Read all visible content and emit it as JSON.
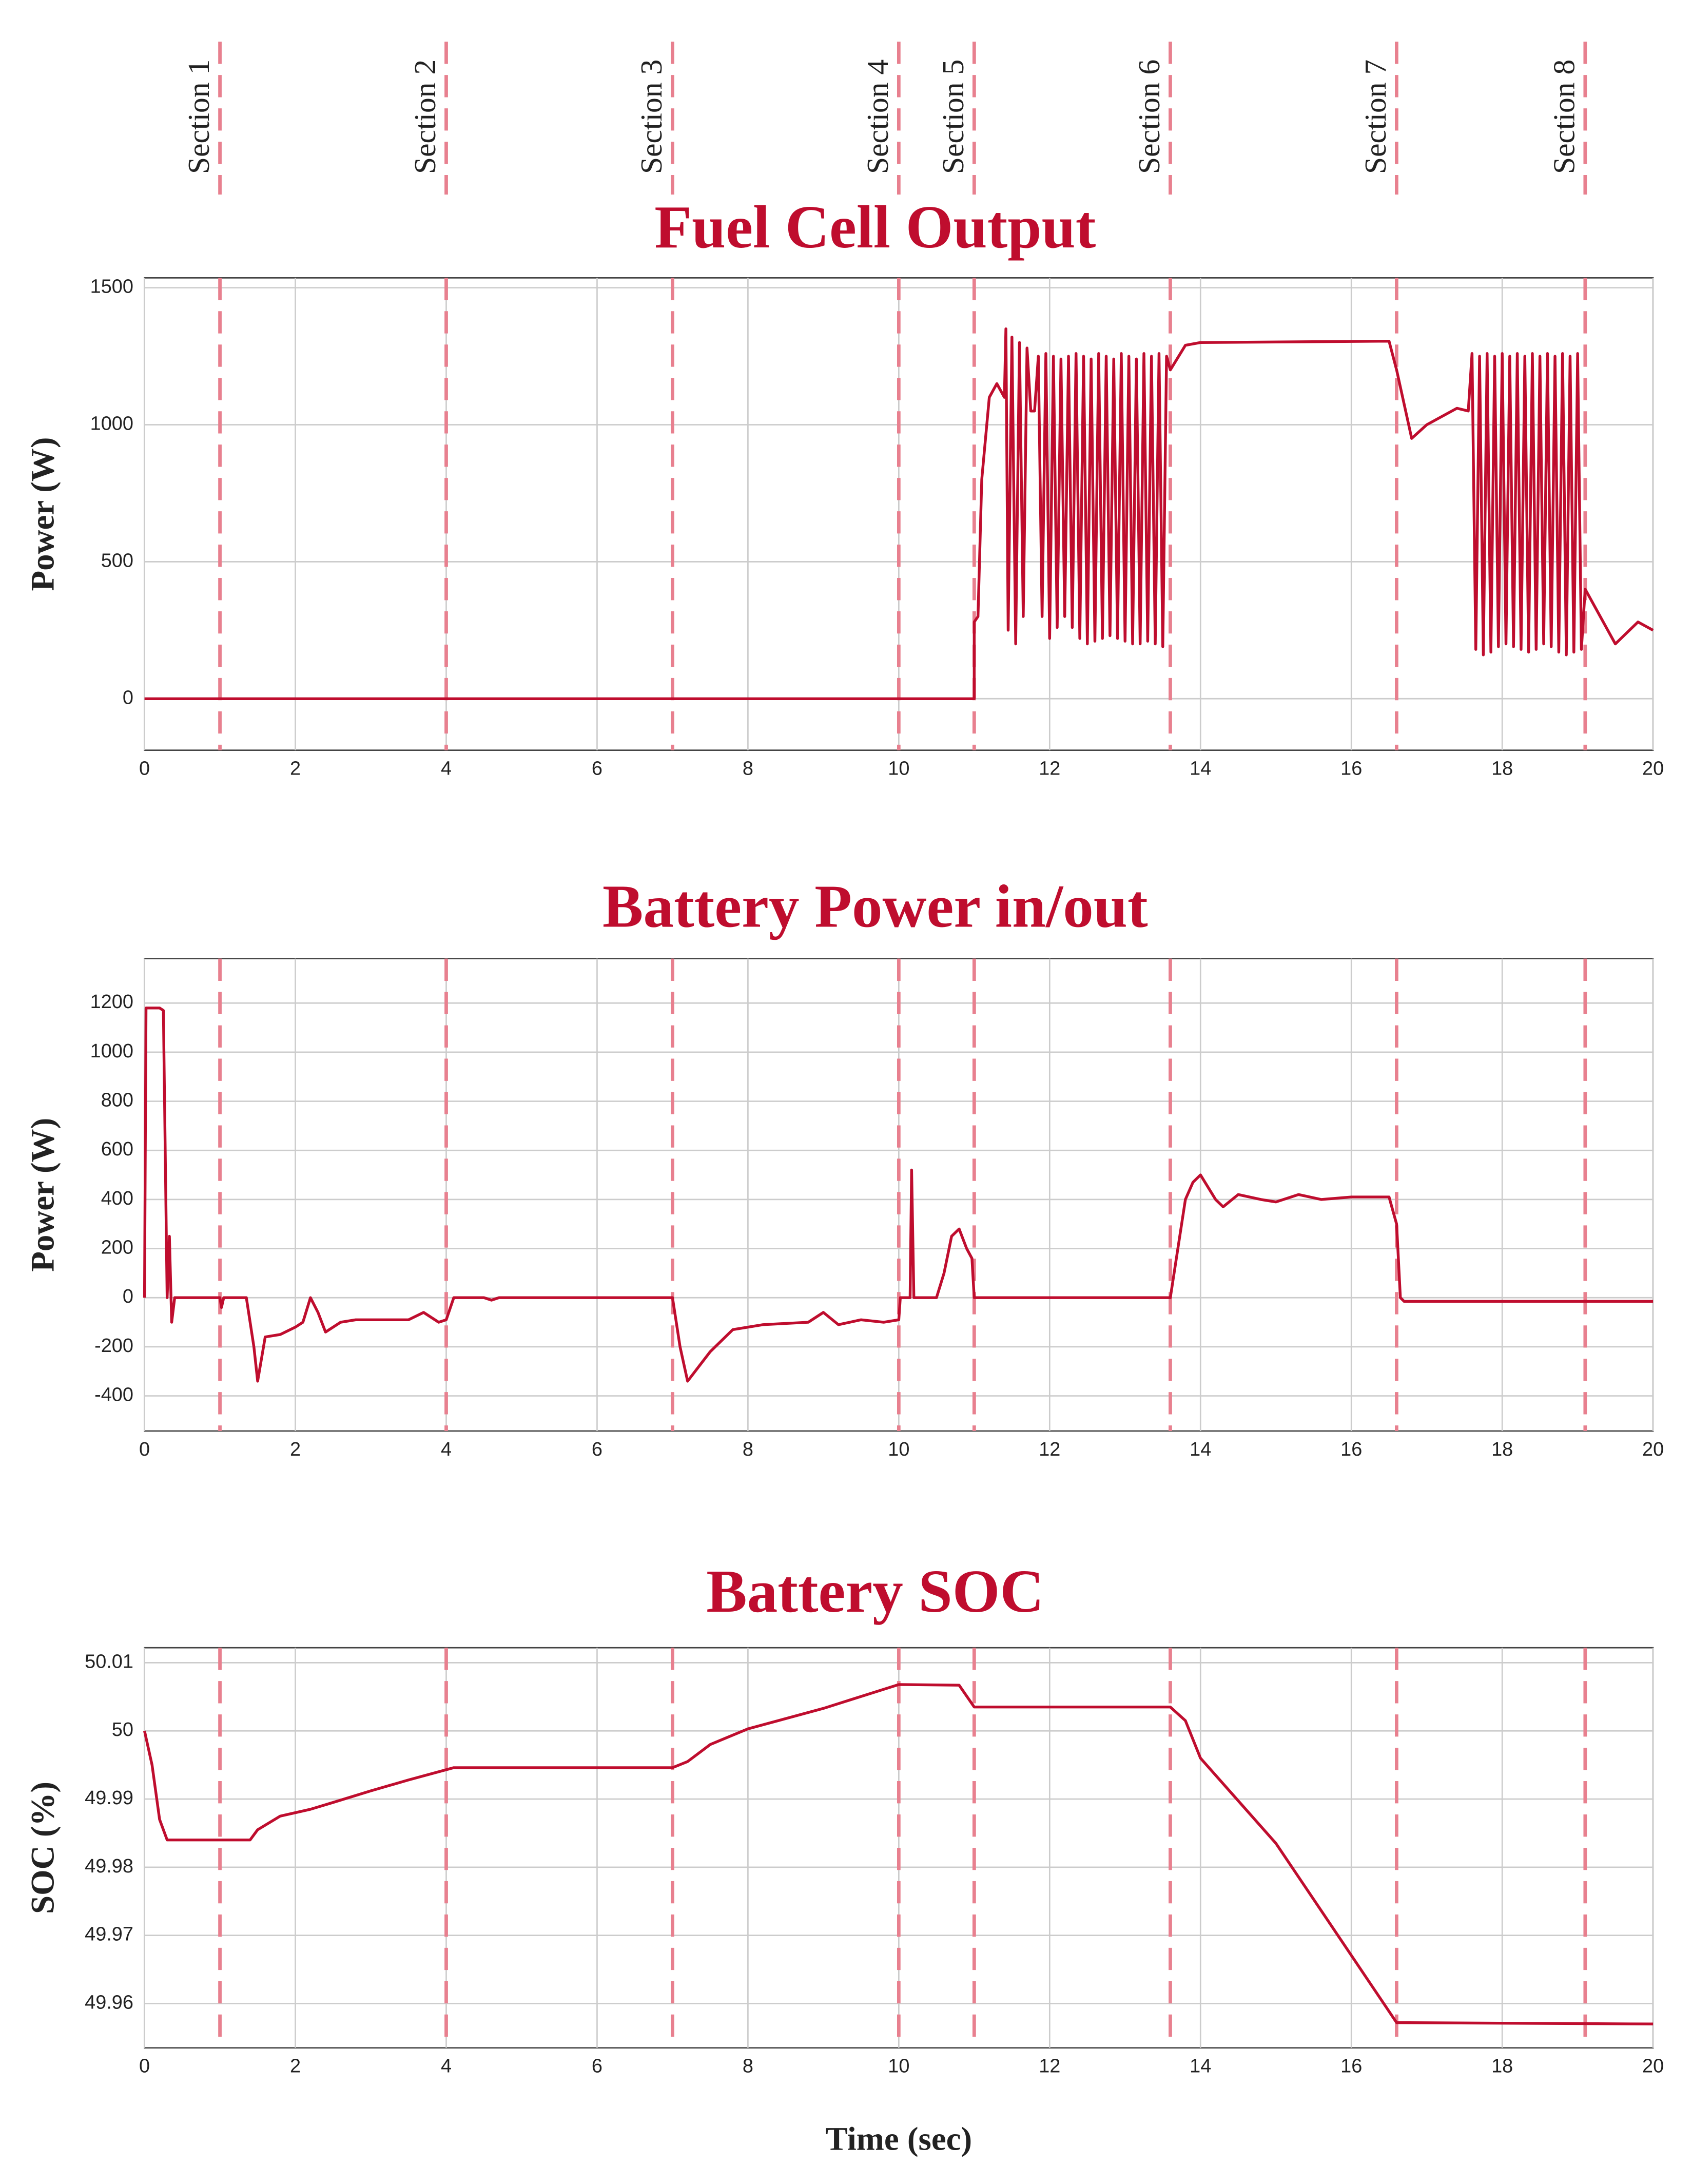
{
  "sections": {
    "labels": [
      "Section 1",
      "Section 2",
      "Section 3",
      "Section 4",
      "Section 5",
      "Section 6",
      "Section 7",
      "Section 8"
    ],
    "x": [
      1,
      4,
      7,
      10,
      11,
      13.6,
      16.6,
      19.1
    ],
    "color": "#e8808f"
  },
  "chart_data": [
    {
      "type": "line",
      "title": "Fuel Cell Output",
      "ylabel": "Power (W)",
      "color": "#bf0d2e",
      "grid": true,
      "xlim": [
        0,
        20
      ],
      "xticks": [
        0,
        2,
        4,
        6,
        8,
        10,
        12,
        14,
        16,
        18,
        20
      ],
      "ylim": [
        -188,
        1536
      ],
      "yticks": [
        0,
        500,
        1000,
        1500
      ],
      "x": [
        0,
        10.95,
        11.0,
        11.0,
        11.05,
        11.1,
        11.2,
        11.3,
        11.4,
        11.42,
        11.45,
        11.5,
        11.55,
        11.6,
        11.65,
        11.7,
        11.75,
        11.8,
        11.85,
        11.9,
        11.95,
        12.0,
        12.05,
        12.1,
        12.15,
        12.2,
        12.25,
        12.3,
        12.35,
        12.4,
        12.45,
        12.5,
        12.55,
        12.6,
        12.65,
        12.7,
        12.75,
        12.8,
        12.85,
        12.9,
        12.95,
        13.0,
        13.05,
        13.1,
        13.15,
        13.2,
        13.25,
        13.3,
        13.35,
        13.4,
        13.45,
        13.5,
        13.55,
        13.6,
        13.8,
        14.0,
        16.5,
        16.6,
        16.8,
        17.0,
        17.4,
        17.55,
        17.6,
        17.65,
        17.7,
        17.75,
        17.8,
        17.85,
        17.9,
        17.95,
        18.0,
        18.05,
        18.1,
        18.15,
        18.2,
        18.25,
        18.3,
        18.35,
        18.4,
        18.45,
        18.5,
        18.55,
        18.6,
        18.65,
        18.7,
        18.75,
        18.8,
        18.85,
        18.9,
        18.95,
        19.0,
        19.05,
        19.1,
        19.3,
        19.5,
        19.8,
        20
      ],
      "values": [
        0,
        0,
        0,
        280,
        300,
        800,
        1100,
        1150,
        1100,
        1350,
        250,
        1320,
        200,
        1300,
        300,
        1280,
        1050,
        1050,
        1250,
        300,
        1260,
        220,
        1250,
        260,
        1240,
        300,
        1250,
        260,
        1260,
        220,
        1250,
        200,
        1240,
        210,
        1260,
        220,
        1250,
        230,
        1240,
        220,
        1260,
        210,
        1250,
        200,
        1240,
        200,
        1260,
        210,
        1250,
        200,
        1260,
        190,
        1250,
        1200,
        1290,
        1300,
        1305,
        1200,
        950,
        1000,
        1060,
        1050,
        1260,
        180,
        1250,
        160,
        1260,
        170,
        1250,
        190,
        1260,
        200,
        1250,
        190,
        1260,
        180,
        1250,
        170,
        1260,
        180,
        1250,
        200,
        1260,
        190,
        1250,
        170,
        1260,
        160,
        1250,
        170,
        1260,
        180,
        400,
        300,
        200,
        280,
        250
      ]
    },
    {
      "type": "line",
      "title": "Battery Power in/out",
      "ylabel": "Power (W)",
      "color": "#bf0d2e",
      "grid": true,
      "xlim": [
        0,
        20
      ],
      "xticks": [
        0,
        2,
        4,
        6,
        8,
        10,
        12,
        14,
        16,
        18,
        20
      ],
      "ylim": [
        -543,
        1381
      ],
      "yticks": [
        -400,
        -200,
        0,
        200,
        400,
        600,
        800,
        1000,
        1200
      ],
      "x": [
        0,
        0.02,
        0.2,
        0.25,
        0.3,
        0.33,
        0.36,
        0.4,
        1.0,
        1.02,
        1.05,
        1.35,
        1.45,
        1.5,
        1.6,
        1.8,
        2.0,
        2.1,
        2.2,
        2.3,
        2.4,
        2.6,
        2.8,
        3.5,
        3.7,
        3.9,
        4.0,
        4.1,
        4.5,
        4.6,
        4.7,
        7.0,
        7.1,
        7.2,
        7.3,
        7.5,
        7.8,
        8.2,
        8.8,
        9.0,
        9.2,
        9.5,
        9.8,
        10.0,
        10.02,
        10.15,
        10.17,
        10.2,
        10.5,
        10.6,
        10.7,
        10.8,
        10.9,
        10.97,
        11.0,
        13.6,
        13.7,
        13.8,
        13.9,
        14.0,
        14.2,
        14.3,
        14.5,
        14.8,
        15.0,
        15.3,
        15.6,
        16.0,
        16.5,
        16.6,
        16.65,
        16.7,
        20
      ],
      "values": [
        0,
        1180,
        1180,
        1170,
        0,
        250,
        -100,
        0,
        0,
        -40,
        0,
        0,
        -200,
        -340,
        -160,
        -150,
        -120,
        -100,
        0,
        -60,
        -140,
        -100,
        -90,
        -90,
        -60,
        -100,
        -90,
        0,
        0,
        -10,
        0,
        0,
        -200,
        -340,
        -300,
        -220,
        -130,
        -110,
        -100,
        -60,
        -110,
        -90,
        -100,
        -90,
        0,
        0,
        520,
        0,
        0,
        100,
        250,
        280,
        200,
        160,
        0,
        0,
        200,
        400,
        470,
        500,
        400,
        370,
        420,
        400,
        390,
        420,
        400,
        410,
        410,
        300,
        0,
        -15,
        -15
      ]
    },
    {
      "type": "line",
      "title": "Battery SOC",
      "ylabel": "SOC (%)",
      "xlabel": "Time (sec)",
      "color": "#bf0d2e",
      "grid": true,
      "xlim": [
        0,
        20
      ],
      "xticks": [
        0,
        2,
        4,
        6,
        8,
        10,
        12,
        14,
        16,
        18,
        20
      ],
      "ylim": [
        49.9535,
        50.0122
      ],
      "yticks": [
        49.96,
        49.97,
        49.98,
        49.99,
        50,
        50.01
      ],
      "x": [
        0,
        0.1,
        0.2,
        0.3,
        1.4,
        1.5,
        1.8,
        2.2,
        2.5,
        3.0,
        3.5,
        4.0,
        4.1,
        7.0,
        7.2,
        7.5,
        8.0,
        9.0,
        10.0,
        10.8,
        11.0,
        13.6,
        13.8,
        14.0,
        15.0,
        16.6,
        20
      ],
      "values": [
        50,
        49.995,
        49.987,
        49.984,
        49.984,
        49.9855,
        49.9875,
        49.9885,
        49.9895,
        49.9912,
        49.9928,
        49.9943,
        49.9946,
        49.9946,
        49.9955,
        49.998,
        50.0003,
        50.0033,
        50.0068,
        50.0067,
        50.0035,
        50.0035,
        50.0015,
        49.996,
        49.9835,
        49.9572,
        49.957
      ]
    }
  ]
}
